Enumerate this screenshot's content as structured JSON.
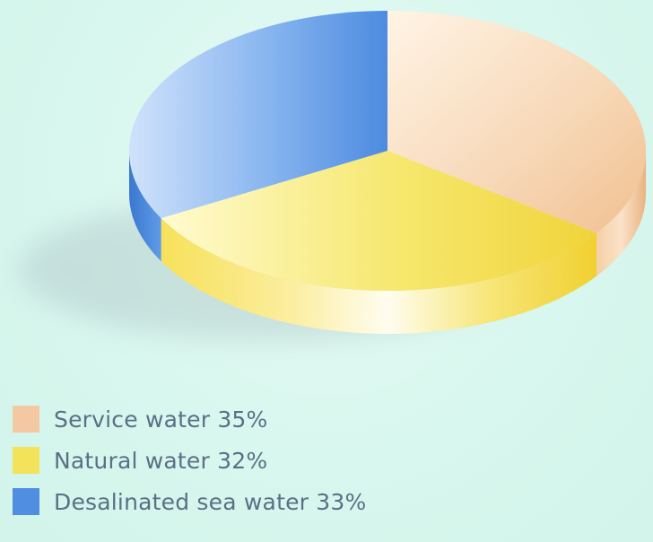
{
  "chart_data": {
    "type": "pie",
    "title": "",
    "slices": [
      {
        "label": "Service water 35%",
        "value": 35,
        "color": "#f4c8a3"
      },
      {
        "label": "Natural water 32%",
        "value": 32,
        "color": "#f3e35a"
      },
      {
        "label": "Desalinated sea water 33%",
        "value": 33,
        "color": "#4f8ee0"
      }
    ],
    "legend_position": "bottom-left",
    "style": "3d"
  }
}
